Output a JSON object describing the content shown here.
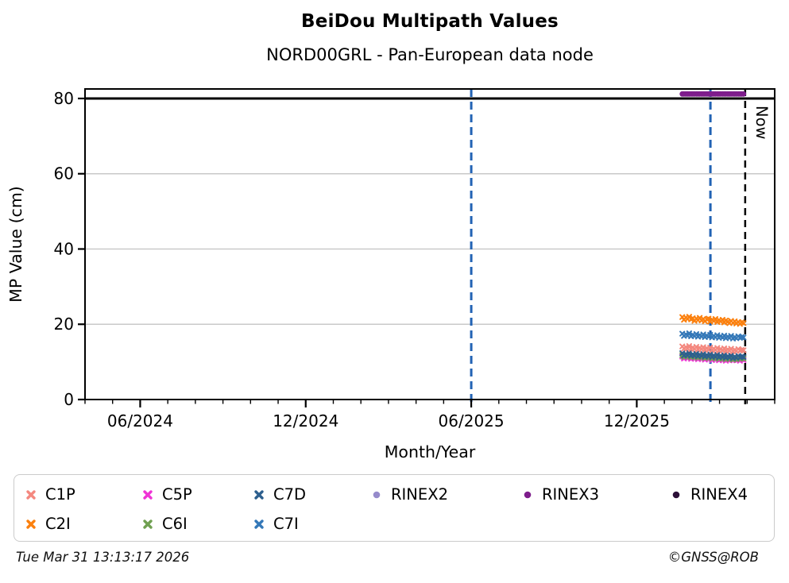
{
  "header": {
    "title": "BeiDou Multipath Values",
    "subtitle": "NORD00GRL - Pan-European data node"
  },
  "footer": {
    "timestamp": "Tue Mar 31 13:13:17 2026",
    "copyright": "©GNSS@ROB"
  },
  "legend": {
    "items": [
      {
        "label": "C1P",
        "color": "#f4887f",
        "marker": "x"
      },
      {
        "label": "C5P",
        "color": "#ef33d5",
        "marker": "x"
      },
      {
        "label": "C7D",
        "color": "#2d5f8e",
        "marker": "x"
      },
      {
        "label": "RINEX2",
        "color": "#968bcb",
        "marker": "dot"
      },
      {
        "label": "RINEX3",
        "color": "#7e1d8c",
        "marker": "dot"
      },
      {
        "label": "RINEX4",
        "color": "#2c1038",
        "marker": "dot"
      },
      {
        "label": "C2I",
        "color": "#fb800e",
        "marker": "x"
      },
      {
        "label": "C6I",
        "color": "#70a051",
        "marker": "x"
      },
      {
        "label": "C7I",
        "color": "#3478b8",
        "marker": "x"
      }
    ]
  },
  "chart_data": {
    "type": "scatter",
    "title": "BeiDou Multipath Values",
    "subtitle": "NORD00GRL - Pan-European data node",
    "xlabel": "Month/Year",
    "ylabel": "MP Value (cm)",
    "x_unit": "months since 2024-04",
    "xlim": [
      0,
      25
    ],
    "ylim": [
      0,
      82.53
    ],
    "grid": "horizontal-only",
    "gridline_color": "#c9c9c9",
    "y_ticks": [
      0,
      20,
      40,
      60,
      80
    ],
    "x_major_ticks": [
      {
        "pos": 2,
        "label": "06/2024"
      },
      {
        "pos": 8,
        "label": "12/2024"
      },
      {
        "pos": 14,
        "label": "06/2025"
      },
      {
        "pos": 20,
        "label": "12/2025"
      }
    ],
    "x_minor_tick_step": 1,
    "hlines": [
      {
        "y": 80,
        "color": "#000000",
        "width": 3
      }
    ],
    "vlines": [
      {
        "pos": 14,
        "color": "#2263b4",
        "width": 3,
        "dash": "10 6",
        "label": ""
      },
      {
        "pos": 22.67,
        "color": "#2263b4",
        "width": 3,
        "dash": "10 6",
        "label": ""
      },
      {
        "pos": 23.93,
        "color": "#000000",
        "width": 2.5,
        "dash": "9 6",
        "label": "Now"
      }
    ],
    "x": [
      21.65,
      21.71,
      21.78,
      21.84,
      21.9,
      21.97,
      22.03,
      22.09,
      22.16,
      22.22,
      22.28,
      22.35,
      22.41,
      22.47,
      22.54,
      22.6,
      22.66,
      22.73,
      22.79,
      22.85,
      22.92,
      22.98,
      23.04,
      23.11,
      23.17,
      23.23,
      23.3,
      23.36,
      23.42,
      23.49,
      23.55,
      23.61,
      23.68,
      23.74,
      23.8,
      23.87
    ],
    "series": [
      {
        "name": "C5P",
        "color": "#ef33d5",
        "marker": "x",
        "values": [
          11.4,
          10.9,
          11.2,
          11.0,
          11.5,
          10.8,
          11.1,
          10.9,
          11.3,
          10.7,
          11.0,
          10.8,
          11.2,
          10.6,
          10.9,
          10.7,
          11.1,
          10.5,
          10.8,
          10.6,
          11.0,
          10.4,
          10.7,
          10.5,
          10.9,
          10.3,
          10.6,
          10.4,
          10.8,
          10.5,
          10.7,
          10.4,
          10.6,
          10.3,
          10.7,
          10.5
        ]
      },
      {
        "name": "C6I",
        "color": "#70a051",
        "marker": "x",
        "values": [
          11.8,
          11.3,
          11.6,
          11.4,
          11.9,
          11.2,
          11.5,
          11.3,
          11.7,
          11.1,
          11.4,
          11.2,
          11.6,
          11.0,
          11.3,
          11.1,
          11.5,
          10.9,
          11.2,
          11.0,
          11.4,
          10.8,
          11.1,
          10.9,
          11.3,
          10.7,
          11.0,
          10.8,
          11.2,
          10.6,
          10.9,
          10.7,
          11.1,
          10.8,
          11.0,
          10.9
        ]
      },
      {
        "name": "C7D",
        "color": "#2d5f8e",
        "marker": "x",
        "values": [
          12.3,
          11.7,
          12.1,
          11.8,
          12.4,
          11.6,
          12.0,
          11.7,
          12.2,
          11.5,
          11.9,
          11.6,
          12.1,
          11.4,
          11.8,
          11.5,
          12.0,
          11.3,
          11.7,
          11.4,
          11.9,
          11.2,
          11.6,
          11.3,
          11.8,
          11.1,
          11.5,
          11.2,
          11.7,
          11.0,
          11.4,
          11.1,
          11.6,
          11.2,
          11.4,
          11.3
        ]
      },
      {
        "name": "C1P",
        "color": "#f4887f",
        "marker": "x",
        "values": [
          14.1,
          13.5,
          13.9,
          13.6,
          14.2,
          13.4,
          13.8,
          13.5,
          14.0,
          13.3,
          13.7,
          13.4,
          13.9,
          13.2,
          13.6,
          13.3,
          13.8,
          13.1,
          13.5,
          13.2,
          13.7,
          13.0,
          13.4,
          13.1,
          13.6,
          12.9,
          13.3,
          13.0,
          13.5,
          12.8,
          13.2,
          12.9,
          13.4,
          13.0,
          13.2,
          13.1
        ]
      },
      {
        "name": "C7I",
        "color": "#3478b8",
        "marker": "x",
        "values": [
          17.5,
          16.9,
          17.3,
          17.0,
          17.6,
          16.8,
          17.2,
          16.9,
          17.4,
          16.7,
          17.1,
          16.8,
          17.3,
          16.6,
          17.0,
          16.7,
          17.2,
          16.5,
          16.9,
          16.6,
          17.1,
          16.4,
          16.8,
          16.5,
          17.0,
          16.3,
          16.7,
          16.4,
          16.9,
          16.2,
          16.6,
          16.3,
          16.8,
          16.4,
          16.6,
          16.5
        ]
      },
      {
        "name": "C2I",
        "color": "#fb800e",
        "marker": "x",
        "values": [
          21.9,
          21.2,
          21.8,
          21.4,
          22.0,
          21.3,
          21.6,
          20.9,
          21.5,
          21.1,
          21.7,
          21.0,
          21.4,
          20.8,
          21.3,
          21.5,
          20.7,
          21.2,
          20.9,
          21.4,
          20.6,
          21.1,
          20.8,
          21.2,
          20.5,
          21.0,
          20.7,
          20.3,
          20.9,
          20.4,
          20.8,
          20.2,
          20.6,
          20.1,
          20.5,
          20.3
        ]
      },
      {
        "name": "RINEX3",
        "color": "#7e1d8c",
        "marker": "dot",
        "values": [
          81.2,
          81.2,
          81.2,
          81.2,
          81.2,
          81.2,
          81.2,
          81.2,
          81.2,
          81.2,
          81.2,
          81.2,
          81.2,
          81.2,
          81.2,
          81.2,
          81.2,
          81.2,
          81.2,
          81.2,
          81.2,
          81.2,
          81.2,
          81.2,
          81.2,
          81.2,
          81.2,
          81.2,
          81.2,
          81.2,
          81.2,
          81.2,
          81.2,
          81.2,
          81.2,
          81.2
        ]
      }
    ]
  }
}
